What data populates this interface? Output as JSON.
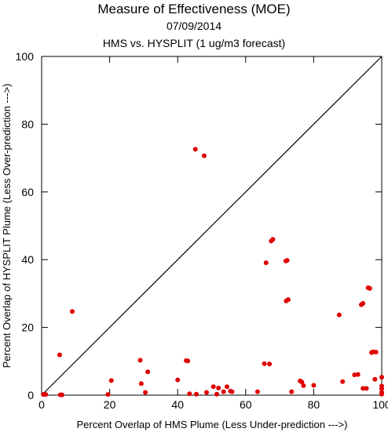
{
  "chart_data": {
    "type": "scatter",
    "title": "Measure of Effectiveness (MOE)",
    "subtitle_date": "07/09/2014",
    "subtitle": "HMS vs. HYSPLIT  (1 ug/m3 forecast)",
    "xlabel": "Percent Overlap of HMS Plume (Less Under-prediction --->)",
    "ylabel": "Percent Overlap of HYSPLIT Plume (Less Over-prediction --->)",
    "xlim": [
      0,
      100
    ],
    "ylim": [
      0,
      100
    ],
    "xticks": [
      0,
      20,
      40,
      60,
      80,
      100
    ],
    "yticks": [
      0,
      20,
      40,
      60,
      80,
      100
    ],
    "grid": false,
    "reference_line": "diagonal",
    "point_color": "#e00000",
    "points": [
      [
        0.5,
        0.2
      ],
      [
        1.2,
        0.2
      ],
      [
        5.5,
        0.1
      ],
      [
        6.0,
        0.1
      ],
      [
        5.3,
        11.9
      ],
      [
        9.0,
        24.7
      ],
      [
        19.5,
        0.2
      ],
      [
        20.5,
        4.3
      ],
      [
        29.0,
        10.3
      ],
      [
        29.3,
        3.4
      ],
      [
        30.5,
        0.8
      ],
      [
        31.2,
        6.9
      ],
      [
        40.0,
        4.5
      ],
      [
        42.5,
        10.2
      ],
      [
        43.0,
        10.1
      ],
      [
        43.5,
        0.4
      ],
      [
        45.2,
        72.6
      ],
      [
        45.5,
        0.3
      ],
      [
        47.8,
        70.7
      ],
      [
        48.5,
        0.8
      ],
      [
        50.5,
        2.5
      ],
      [
        51.5,
        0.3
      ],
      [
        52.0,
        2.1
      ],
      [
        53.5,
        1.0
      ],
      [
        54.5,
        2.5
      ],
      [
        55.5,
        1.2
      ],
      [
        56.0,
        1.0
      ],
      [
        63.5,
        1.0
      ],
      [
        65.5,
        9.3
      ],
      [
        66.0,
        39.1
      ],
      [
        67.0,
        9.2
      ],
      [
        67.5,
        45.5
      ],
      [
        68.0,
        46.0
      ],
      [
        71.8,
        39.6
      ],
      [
        72.2,
        39.8
      ],
      [
        71.9,
        27.8
      ],
      [
        72.5,
        28.2
      ],
      [
        73.5,
        1.0
      ],
      [
        76.0,
        4.2
      ],
      [
        76.5,
        3.9
      ],
      [
        77.0,
        2.8
      ],
      [
        80.0,
        2.9
      ],
      [
        87.5,
        23.7
      ],
      [
        88.5,
        4.0
      ],
      [
        92.0,
        6.0
      ],
      [
        93.0,
        6.1
      ],
      [
        94.0,
        26.7
      ],
      [
        94.5,
        27.1
      ],
      [
        94.5,
        2.0
      ],
      [
        95.5,
        2.0
      ],
      [
        96.0,
        31.7
      ],
      [
        96.5,
        31.5
      ],
      [
        97.0,
        12.6
      ],
      [
        97.5,
        12.8
      ],
      [
        98.0,
        4.7
      ],
      [
        98.3,
        12.7
      ],
      [
        100.0,
        5.3
      ],
      [
        100.0,
        2.7
      ],
      [
        100.0,
        1.9
      ],
      [
        100.0,
        0.8
      ],
      [
        100.0,
        0.3
      ]
    ]
  }
}
